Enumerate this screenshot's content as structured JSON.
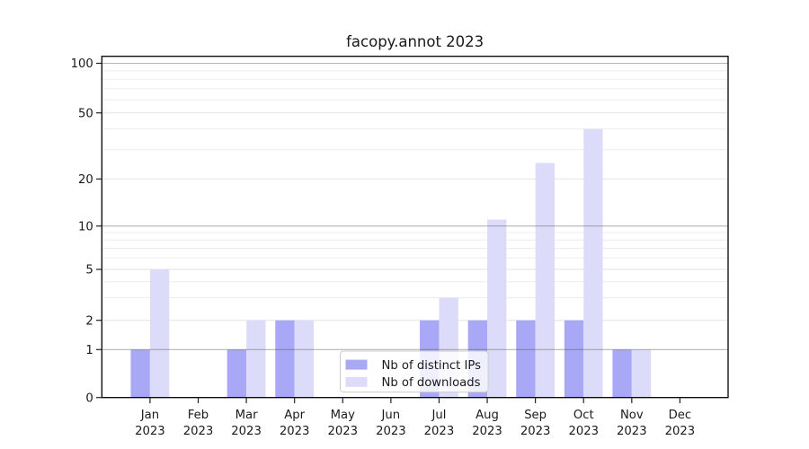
{
  "title": "facopy.annot 2023",
  "chart_data": {
    "type": "bar",
    "title": "facopy.annot 2023",
    "categories": [
      "Jan",
      "Feb",
      "Mar",
      "Apr",
      "May",
      "Jun",
      "Jul",
      "Aug",
      "Sep",
      "Oct",
      "Nov",
      "Dec"
    ],
    "category_year": "2023",
    "series": [
      {
        "name": "Nb of distinct IPs",
        "color": "#a8a8f6",
        "values": [
          1,
          0,
          1,
          2,
          0,
          0,
          2,
          2,
          2,
          2,
          1,
          0
        ]
      },
      {
        "name": "Nb of downloads",
        "color": "#dcdcfa",
        "values": [
          5,
          0,
          2,
          2,
          0,
          0,
          3,
          11,
          25,
          40,
          1,
          0
        ]
      }
    ],
    "yticks": [
      100,
      50,
      20,
      10,
      5,
      2,
      1,
      0
    ],
    "minor_gridline_values": [
      3,
      4,
      6,
      7,
      8,
      9,
      30,
      40,
      60,
      70,
      80,
      90
    ],
    "scale": "log-like",
    "ylim": [
      0,
      100
    ],
    "grid": "on",
    "legend_position": "lower-center",
    "colors": {
      "spine": "#000000",
      "decade_gridline": "rgba(70,70,70,0.40)",
      "major_gridline": "rgba(0,0,0,0.115)",
      "minor_gridline": "rgba(0,0,0,0.075)",
      "legend_border": "#cccccc",
      "legend_background": "rgba(255,255,255,0.82)"
    }
  }
}
